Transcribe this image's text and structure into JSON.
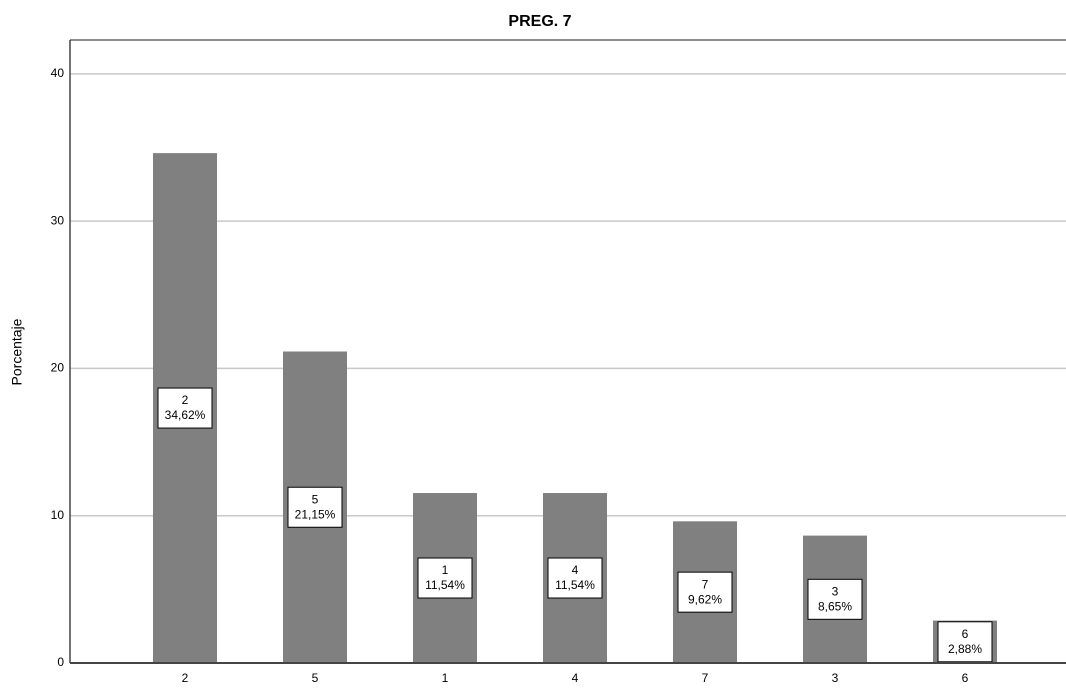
{
  "chart_data": {
    "type": "bar",
    "title": "PREG. 7",
    "y_label": "Porcentaje",
    "categories": [
      "2",
      "5",
      "1",
      "4",
      "7",
      "3",
      "6"
    ],
    "values": [
      34.62,
      21.15,
      11.54,
      11.54,
      9.62,
      8.65,
      2.88
    ],
    "value_labels": [
      "34,62%",
      "21,15%",
      "11,54%",
      "11,54%",
      "9,62%",
      "8,65%",
      "2,88%"
    ],
    "color": "#808080",
    "ylim": [
      0,
      42.3
    ],
    "yticks": [
      0,
      10,
      20,
      30,
      40
    ],
    "grid": true
  }
}
